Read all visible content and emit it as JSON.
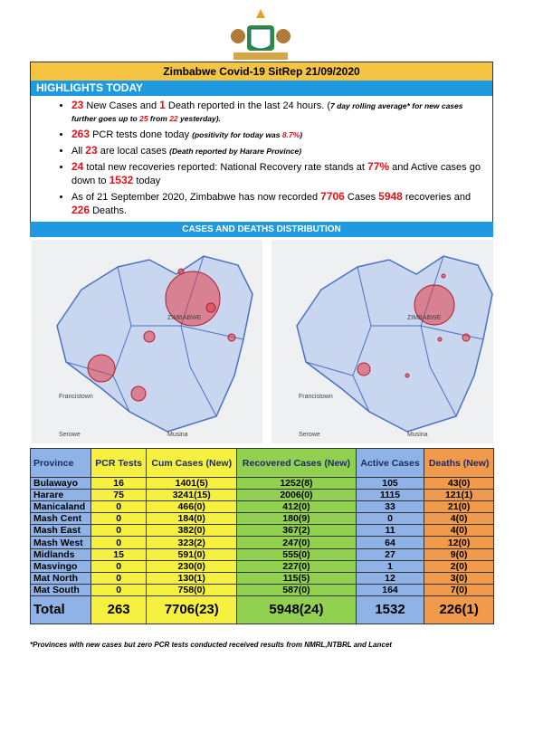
{
  "title": "Zimbabwe Covid-19 SitRep 21/09/2020",
  "highlights_heading": "HIGHLIGHTS TODAY",
  "bullets": [
    [
      {
        "text": "23",
        "style": "r"
      },
      {
        "text": " New Cases and ",
        "style": "n"
      },
      {
        "text": "1",
        "style": "r"
      },
      {
        "text": " Death reported in the last 24 hours. (",
        "style": "n"
      },
      {
        "text": "7 day rolling average* for new cases further goes up to ",
        "style": "i"
      },
      {
        "text": "25",
        "style": "ri"
      },
      {
        "text": " from ",
        "style": "i"
      },
      {
        "text": "22",
        "style": "ri"
      },
      {
        "text": " yesterday).",
        "style": "i"
      }
    ],
    [
      {
        "text": "263",
        "style": "r"
      },
      {
        "text": " PCR tests done today ",
        "style": "n"
      },
      {
        "text": "(positivity for today was ",
        "style": "i"
      },
      {
        "text": "8.7%",
        "style": "ri"
      },
      {
        "text": ")",
        "style": "i"
      }
    ],
    [
      {
        "text": "All ",
        "style": "n"
      },
      {
        "text": "23",
        "style": "r"
      },
      {
        "text": " are local cases ",
        "style": "n"
      },
      {
        "text": "(Death reported by Harare Province)",
        "style": "i"
      }
    ],
    [
      {
        "text": "24",
        "style": "r"
      },
      {
        "text": " total new recoveries reported: National Recovery rate stands at ",
        "style": "n"
      },
      {
        "text": "77%",
        "style": "r"
      },
      {
        "text": " and Active cases go down to ",
        "style": "n"
      },
      {
        "text": "1532",
        "style": "r"
      },
      {
        "text": " today",
        "style": "n"
      }
    ],
    [
      {
        "text": "As of 21 September 2020, Zimbabwe has now recorded ",
        "style": "n"
      },
      {
        "text": "7706",
        "style": "r"
      },
      {
        "text": " Cases ",
        "style": "n"
      },
      {
        "text": "5948",
        "style": "r"
      },
      {
        "text": " recoveries and ",
        "style": "n"
      },
      {
        "text": "226",
        "style": "r"
      },
      {
        "text": " Deaths.",
        "style": "n"
      }
    ]
  ],
  "distribution_heading": "CASES AND DEATHS DISTRIBUTION",
  "maps": [
    {
      "labels": [
        "ZIMBABWE",
        "Francistown",
        "Serowe",
        "Musina"
      ]
    },
    {
      "labels": [
        "ZIMBABWE",
        "Francistown",
        "Serowe",
        "Musina"
      ]
    }
  ],
  "table": {
    "header": [
      "Province",
      "PCR Tests",
      "Cum Cases (New)",
      "Recovered Cases (New)",
      "Active Cases",
      "Deaths (New)"
    ],
    "rows": [
      [
        "Bulawayo",
        "16",
        "1401(5)",
        "1252(8)",
        "105",
        "43(0)"
      ],
      [
        "Harare",
        "75",
        "3241(15)",
        "2006(0)",
        "1115",
        "121(1)"
      ],
      [
        "Manicaland",
        "0",
        "466(0)",
        "412(0)",
        "33",
        "21(0)"
      ],
      [
        "Mash Cent",
        "0",
        "184(0)",
        "180(9)",
        "0",
        "4(0)"
      ],
      [
        "Mash East",
        "0",
        "382(0)",
        "367(2)",
        "11",
        "4(0)"
      ],
      [
        "Mash West",
        "0",
        "323(2)",
        "247(0)",
        "64",
        "12(0)"
      ],
      [
        "Midlands",
        "15",
        "591(0)",
        "555(0)",
        "27",
        "9(0)"
      ],
      [
        "Masvingo",
        "0",
        "230(0)",
        "227(0)",
        "1",
        "2(0)"
      ],
      [
        "Mat North",
        "0",
        "130(1)",
        "115(5)",
        "12",
        "3(0)"
      ],
      [
        "Mat South",
        "0",
        "758(0)",
        "587(0)",
        "164",
        "7(0)"
      ]
    ],
    "total": [
      "Total",
      "263",
      "7706(23)",
      "5948(24)",
      "1532",
      "226(1)"
    ]
  },
  "footnote": "*Provinces with new cases but zero PCR tests conducted received results from NMRL,NTBRL and Lancet"
}
